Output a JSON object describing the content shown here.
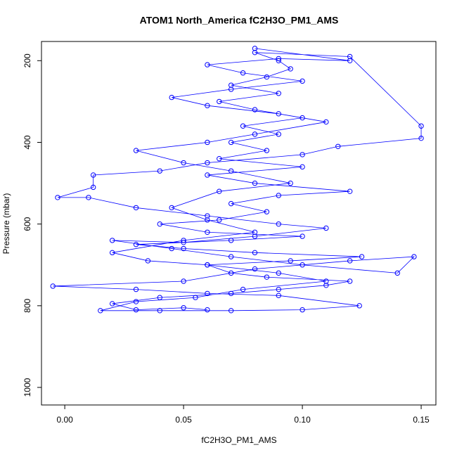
{
  "chart_data": {
    "type": "line",
    "title": "ATOM1 North_America fC2H3O_PM1_AMS",
    "x_label": "fC2H3O_PM1_AMS",
    "y_label": "Pressure (mbar)",
    "color": "#0000ff",
    "markers": true,
    "xlim": [
      -0.0098,
      0.1562
    ],
    "xticks": [
      {
        "value": 0,
        "label": "0.00"
      },
      0.05,
      {
        "value": 0.1,
        "label": "0.10"
      },
      0.15
    ],
    "ylim": [
      1043,
      153
    ],
    "yticks": [
      200,
      400,
      600,
      800,
      1000
    ],
    "x": [
      0.06,
      0.05,
      0.03,
      0.02,
      0.04,
      0.07,
      0.09,
      0.11,
      0.12,
      0.085,
      0.07,
      0.06,
      0.095,
      0.125,
      0.08,
      0.05,
      0.03,
      0.07,
      0.1,
      0.06,
      0.04,
      0.065,
      0.085,
      0.07,
      0.09,
      0.12,
      0.08,
      0.06,
      0.1,
      0.065,
      0.085,
      0.07,
      0.09,
      0.075,
      0.1,
      0.08,
      0.065,
      0.09,
      0.07,
      0.085,
      0.095,
      0.09,
      0.08,
      0.12,
      0.15,
      0.15,
      0.115,
      0.1,
      0.06,
      0.04,
      0.012,
      0.012,
      -0.003,
      0.01,
      0.03,
      0.06,
      0.09,
      0.11,
      0.08,
      0.05,
      0.02,
      0.045,
      0.07,
      0.1,
      0.14,
      0.147,
      0.12,
      0.08,
      0.05,
      -0.005,
      0.03,
      0.06,
      0.09,
      0.124,
      0.1,
      0.07,
      0.04,
      0.015,
      0.03,
      0.055,
      0.075,
      0.11,
      0.09,
      0.06,
      0.035,
      0.02,
      0.05,
      0.08,
      0.06,
      0.045,
      0.065,
      0.095,
      0.07,
      0.05,
      0.03,
      0.06,
      0.08,
      0.11,
      0.09,
      0.06,
      0.045,
      0.07,
      0.1,
      0.075,
      0.06,
      0.09,
      0.12,
      0.08
    ],
    "values": [
      810,
      805,
      810,
      795,
      780,
      770,
      760,
      750,
      740,
      730,
      720,
      700,
      690,
      680,
      670,
      660,
      650,
      640,
      630,
      620,
      600,
      590,
      570,
      550,
      530,
      520,
      500,
      480,
      460,
      440,
      420,
      400,
      380,
      360,
      340,
      320,
      300,
      280,
      260,
      240,
      220,
      200,
      180,
      190,
      360,
      390,
      410,
      430,
      450,
      470,
      480,
      510,
      535,
      535,
      560,
      580,
      600,
      610,
      630,
      645,
      640,
      660,
      680,
      700,
      720,
      680,
      690,
      710,
      740,
      752,
      760,
      770,
      775,
      800,
      810,
      812,
      812,
      812,
      790,
      780,
      760,
      740,
      720,
      700,
      690,
      670,
      640,
      620,
      590,
      560,
      520,
      500,
      470,
      450,
      420,
      400,
      380,
      350,
      330,
      310,
      290,
      270,
      250,
      230,
      210,
      195,
      200,
      170
    ]
  }
}
